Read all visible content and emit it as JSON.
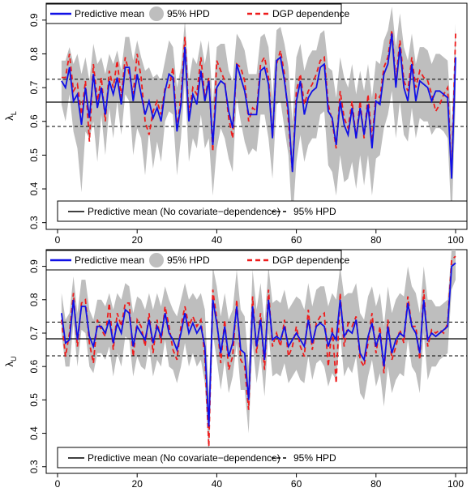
{
  "chart_data": [
    {
      "type": "line",
      "ylabel": "λ",
      "ylabel_sub": "L",
      "xlim": [
        0,
        100
      ],
      "ylim": [
        0.28,
        0.95
      ],
      "xticks": [
        0,
        20,
        40,
        60,
        80,
        100
      ],
      "yticks": [
        0.3,
        0.4,
        0.5,
        0.6,
        0.7,
        0.8,
        0.9
      ],
      "hlines": {
        "mean": 0.657,
        "hpd_lower": 0.585,
        "hpd_upper": 0.725
      },
      "legend_top": {
        "predictive_mean": "Predictive mean",
        "hpd": "95% HPD",
        "dgp": "DGP dependence"
      },
      "legend_bottom": {
        "mean_no_cov": "Predictive mean (No covariate−dependence)",
        "hpd": "95% HPD"
      },
      "x": [
        1,
        2,
        3,
        4,
        5,
        6,
        7,
        8,
        9,
        10,
        11,
        12,
        13,
        14,
        15,
        16,
        17,
        18,
        19,
        20,
        21,
        22,
        23,
        24,
        25,
        26,
        27,
        28,
        29,
        30,
        31,
        32,
        33,
        34,
        35,
        36,
        37,
        38,
        39,
        40,
        41,
        42,
        43,
        44,
        45,
        46,
        47,
        48,
        49,
        50,
        51,
        52,
        53,
        54,
        55,
        56,
        57,
        58,
        59,
        60,
        61,
        62,
        63,
        64,
        65,
        66,
        67,
        68,
        69,
        70,
        71,
        72,
        73,
        74,
        75,
        76,
        77,
        78,
        79,
        80,
        81,
        82,
        83,
        84,
        85,
        86,
        87,
        88,
        89,
        90,
        91,
        92,
        93,
        94,
        95,
        96,
        97,
        98,
        99,
        100
      ],
      "predictive_mean": [
        0.72,
        0.7,
        0.76,
        0.66,
        0.68,
        0.59,
        0.7,
        0.61,
        0.74,
        0.64,
        0.7,
        0.62,
        0.72,
        0.68,
        0.73,
        0.65,
        0.76,
        0.76,
        0.66,
        0.74,
        0.68,
        0.62,
        0.66,
        0.61,
        0.64,
        0.6,
        0.69,
        0.74,
        0.73,
        0.57,
        0.65,
        0.82,
        0.6,
        0.68,
        0.65,
        0.75,
        0.66,
        0.72,
        0.53,
        0.7,
        0.72,
        0.71,
        0.63,
        0.58,
        0.77,
        0.73,
        0.69,
        0.62,
        0.62,
        0.62,
        0.75,
        0.76,
        0.71,
        0.55,
        0.78,
        0.79,
        0.72,
        0.63,
        0.45,
        0.66,
        0.72,
        0.62,
        0.67,
        0.69,
        0.7,
        0.76,
        0.77,
        0.63,
        0.61,
        0.53,
        0.66,
        0.59,
        0.56,
        0.64,
        0.55,
        0.64,
        0.56,
        0.65,
        0.52,
        0.66,
        0.65,
        0.74,
        0.77,
        0.86,
        0.7,
        0.82,
        0.7,
        0.66,
        0.77,
        0.66,
        0.72,
        0.71,
        0.7,
        0.66,
        0.69,
        0.69,
        0.68,
        0.67,
        0.43,
        0.79
      ],
      "hpd_lower": [
        0.65,
        0.6,
        0.68,
        0.57,
        0.52,
        0.39,
        0.57,
        0.55,
        0.6,
        0.48,
        0.62,
        0.5,
        0.64,
        0.55,
        0.66,
        0.56,
        0.68,
        0.66,
        0.5,
        0.58,
        0.55,
        0.44,
        0.57,
        0.46,
        0.54,
        0.48,
        0.6,
        0.63,
        0.62,
        0.44,
        0.55,
        0.72,
        0.48,
        0.55,
        0.52,
        0.62,
        0.52,
        0.55,
        0.38,
        0.52,
        0.58,
        0.55,
        0.49,
        0.45,
        0.67,
        0.6,
        0.54,
        0.5,
        0.52,
        0.51,
        0.62,
        0.62,
        0.55,
        0.43,
        0.65,
        0.66,
        0.58,
        0.5,
        0.3,
        0.48,
        0.56,
        0.48,
        0.53,
        0.55,
        0.55,
        0.62,
        0.63,
        0.47,
        0.45,
        0.38,
        0.5,
        0.42,
        0.43,
        0.48,
        0.4,
        0.5,
        0.41,
        0.5,
        0.38,
        0.49,
        0.5,
        0.58,
        0.62,
        0.69,
        0.55,
        0.66,
        0.56,
        0.54,
        0.64,
        0.55,
        0.61,
        0.6,
        0.6,
        0.56,
        0.58,
        0.58,
        0.57,
        0.55,
        0.3,
        0.66
      ],
      "hpd_upper": [
        0.78,
        0.78,
        0.82,
        0.77,
        0.8,
        0.74,
        0.79,
        0.72,
        0.83,
        0.77,
        0.79,
        0.74,
        0.8,
        0.77,
        0.81,
        0.75,
        0.85,
        0.85,
        0.78,
        0.84,
        0.79,
        0.75,
        0.76,
        0.73,
        0.74,
        0.72,
        0.78,
        0.84,
        0.82,
        0.7,
        0.76,
        0.9,
        0.72,
        0.79,
        0.77,
        0.84,
        0.77,
        0.84,
        0.65,
        0.82,
        0.83,
        0.83,
        0.75,
        0.72,
        0.86,
        0.84,
        0.81,
        0.74,
        0.74,
        0.74,
        0.85,
        0.86,
        0.82,
        0.67,
        0.87,
        0.88,
        0.83,
        0.76,
        0.6,
        0.79,
        0.83,
        0.75,
        0.79,
        0.81,
        0.81,
        0.86,
        0.87,
        0.76,
        0.75,
        0.67,
        0.79,
        0.73,
        0.7,
        0.77,
        0.68,
        0.75,
        0.69,
        0.77,
        0.67,
        0.78,
        0.77,
        0.84,
        0.87,
        0.94,
        0.82,
        0.92,
        0.82,
        0.78,
        0.86,
        0.77,
        0.82,
        0.82,
        0.81,
        0.77,
        0.8,
        0.8,
        0.79,
        0.78,
        0.58,
        0.89
      ],
      "dgp_dependence": [
        0.73,
        0.73,
        0.8,
        0.69,
        0.71,
        0.62,
        0.72,
        0.54,
        0.77,
        0.66,
        0.73,
        0.6,
        0.75,
        0.7,
        0.78,
        0.67,
        0.79,
        0.74,
        0.68,
        0.8,
        0.73,
        0.6,
        0.56,
        0.63,
        0.66,
        0.62,
        0.7,
        0.7,
        0.76,
        0.58,
        0.67,
        0.85,
        0.62,
        0.7,
        0.68,
        0.79,
        0.67,
        0.73,
        0.51,
        0.78,
        0.75,
        0.72,
        0.61,
        0.55,
        0.77,
        0.76,
        0.72,
        0.6,
        0.64,
        0.63,
        0.77,
        0.79,
        0.73,
        0.55,
        0.77,
        0.81,
        0.74,
        0.6,
        0.45,
        0.69,
        0.74,
        0.65,
        0.69,
        0.71,
        0.74,
        0.78,
        0.79,
        0.65,
        0.6,
        0.52,
        0.69,
        0.61,
        0.58,
        0.66,
        0.55,
        0.66,
        0.55,
        0.68,
        0.54,
        0.68,
        0.67,
        0.76,
        0.79,
        0.87,
        0.72,
        0.84,
        0.72,
        0.69,
        0.79,
        0.7,
        0.75,
        0.73,
        0.72,
        0.68,
        0.63,
        0.65,
        0.68,
        0.7,
        0.44,
        0.86
      ]
    },
    {
      "type": "line",
      "ylabel": "λ",
      "ylabel_sub": "U",
      "xlim": [
        0,
        100
      ],
      "ylim": [
        0.28,
        0.95
      ],
      "xticks": [
        0,
        20,
        40,
        60,
        80,
        100
      ],
      "yticks": [
        0.3,
        0.4,
        0.5,
        0.6,
        0.7,
        0.8,
        0.9
      ],
      "hlines": {
        "mean": 0.683,
        "hpd_lower": 0.632,
        "hpd_upper": 0.733
      },
      "legend_top": {
        "predictive_mean": "Predictive mean",
        "hpd": "95% HPD",
        "dgp": "DGP dependence"
      },
      "legend_bottom": {
        "mean_no_cov": "Predictive mean (No covariate−dependence)",
        "hpd": "95% HPD"
      },
      "x": [
        1,
        2,
        3,
        4,
        5,
        6,
        7,
        8,
        9,
        10,
        11,
        12,
        13,
        14,
        15,
        16,
        17,
        18,
        19,
        20,
        21,
        22,
        23,
        24,
        25,
        26,
        27,
        28,
        29,
        30,
        31,
        32,
        33,
        34,
        35,
        36,
        37,
        38,
        39,
        40,
        41,
        42,
        43,
        44,
        45,
        46,
        47,
        48,
        49,
        50,
        51,
        52,
        53,
        54,
        55,
        56,
        57,
        58,
        59,
        60,
        61,
        62,
        63,
        64,
        65,
        66,
        67,
        68,
        69,
        70,
        71,
        72,
        73,
        74,
        75,
        76,
        77,
        78,
        79,
        80,
        81,
        82,
        83,
        84,
        85,
        86,
        87,
        88,
        89,
        90,
        91,
        92,
        93,
        94,
        95,
        96,
        97,
        98,
        99,
        100
      ],
      "predictive_mean": [
        0.76,
        0.67,
        0.68,
        0.8,
        0.68,
        0.78,
        0.78,
        0.69,
        0.66,
        0.72,
        0.72,
        0.7,
        0.74,
        0.67,
        0.73,
        0.7,
        0.77,
        0.76,
        0.66,
        0.72,
        0.7,
        0.68,
        0.74,
        0.67,
        0.72,
        0.69,
        0.76,
        0.7,
        0.68,
        0.65,
        0.7,
        0.76,
        0.7,
        0.73,
        0.7,
        0.72,
        0.66,
        0.42,
        0.8,
        0.73,
        0.64,
        0.72,
        0.63,
        0.67,
        0.78,
        0.65,
        0.64,
        0.5,
        0.78,
        0.66,
        0.74,
        0.62,
        0.8,
        0.68,
        0.69,
        0.68,
        0.72,
        0.66,
        0.68,
        0.7,
        0.68,
        0.66,
        0.74,
        0.67,
        0.72,
        0.73,
        0.72,
        0.66,
        0.7,
        0.68,
        0.8,
        0.69,
        0.71,
        0.7,
        0.74,
        0.64,
        0.62,
        0.69,
        0.73,
        0.66,
        0.7,
        0.6,
        0.72,
        0.64,
        0.68,
        0.7,
        0.69,
        0.79,
        0.72,
        0.7,
        0.64,
        0.8,
        0.68,
        0.7,
        0.69,
        0.7,
        0.71,
        0.72,
        0.9,
        0.91
      ],
      "hpd_lower": [
        0.7,
        0.6,
        0.6,
        0.73,
        0.6,
        0.71,
        0.7,
        0.6,
        0.58,
        0.64,
        0.64,
        0.62,
        0.66,
        0.57,
        0.64,
        0.6,
        0.69,
        0.68,
        0.57,
        0.63,
        0.6,
        0.59,
        0.66,
        0.57,
        0.62,
        0.6,
        0.68,
        0.6,
        0.59,
        0.55,
        0.6,
        0.67,
        0.6,
        0.64,
        0.6,
        0.62,
        0.55,
        0.33,
        0.7,
        0.62,
        0.53,
        0.62,
        0.52,
        0.57,
        0.67,
        0.53,
        0.53,
        0.4,
        0.67,
        0.55,
        0.63,
        0.51,
        0.7,
        0.57,
        0.58,
        0.57,
        0.61,
        0.55,
        0.57,
        0.59,
        0.56,
        0.55,
        0.63,
        0.56,
        0.61,
        0.62,
        0.6,
        0.54,
        0.58,
        0.56,
        0.7,
        0.57,
        0.6,
        0.58,
        0.63,
        0.52,
        0.5,
        0.57,
        0.62,
        0.54,
        0.58,
        0.48,
        0.6,
        0.52,
        0.56,
        0.58,
        0.57,
        0.68,
        0.6,
        0.58,
        0.52,
        0.7,
        0.56,
        0.6,
        0.6,
        0.62,
        0.63,
        0.64,
        0.83,
        0.86
      ],
      "hpd_upper": [
        0.82,
        0.74,
        0.76,
        0.87,
        0.76,
        0.86,
        0.86,
        0.77,
        0.74,
        0.8,
        0.8,
        0.78,
        0.82,
        0.77,
        0.82,
        0.8,
        0.85,
        0.84,
        0.76,
        0.81,
        0.8,
        0.77,
        0.82,
        0.77,
        0.82,
        0.78,
        0.84,
        0.8,
        0.77,
        0.75,
        0.8,
        0.85,
        0.8,
        0.82,
        0.8,
        0.82,
        0.77,
        0.52,
        0.9,
        0.84,
        0.75,
        0.82,
        0.74,
        0.77,
        0.89,
        0.77,
        0.75,
        0.6,
        0.89,
        0.77,
        0.85,
        0.73,
        0.9,
        0.79,
        0.8,
        0.79,
        0.83,
        0.77,
        0.79,
        0.81,
        0.8,
        0.77,
        0.85,
        0.78,
        0.83,
        0.84,
        0.84,
        0.78,
        0.82,
        0.8,
        0.9,
        0.81,
        0.82,
        0.82,
        0.85,
        0.76,
        0.74,
        0.81,
        0.84,
        0.78,
        0.82,
        0.72,
        0.84,
        0.76,
        0.8,
        0.82,
        0.81,
        0.9,
        0.84,
        0.82,
        0.76,
        0.9,
        0.8,
        0.8,
        0.78,
        0.78,
        0.79,
        0.8,
        0.95,
        0.95
      ],
      "dgp_dependence": [
        0.74,
        0.63,
        0.7,
        0.82,
        0.66,
        0.79,
        0.8,
        0.67,
        0.61,
        0.74,
        0.71,
        0.69,
        0.79,
        0.65,
        0.76,
        0.72,
        0.79,
        0.79,
        0.63,
        0.74,
        0.72,
        0.66,
        0.76,
        0.64,
        0.74,
        0.67,
        0.78,
        0.72,
        0.65,
        0.62,
        0.72,
        0.78,
        0.72,
        0.75,
        0.72,
        0.74,
        0.63,
        0.36,
        0.83,
        0.74,
        0.61,
        0.74,
        0.59,
        0.63,
        0.8,
        0.62,
        0.6,
        0.47,
        0.81,
        0.64,
        0.76,
        0.59,
        0.83,
        0.66,
        0.7,
        0.66,
        0.74,
        0.63,
        0.66,
        0.72,
        0.66,
        0.63,
        0.77,
        0.65,
        0.73,
        0.75,
        0.76,
        0.6,
        0.72,
        0.55,
        0.82,
        0.66,
        0.73,
        0.72,
        0.75,
        0.62,
        0.6,
        0.67,
        0.76,
        0.64,
        0.72,
        0.58,
        0.74,
        0.62,
        0.66,
        0.71,
        0.67,
        0.81,
        0.72,
        0.72,
        0.62,
        0.83,
        0.66,
        0.71,
        0.7,
        0.71,
        0.7,
        0.73,
        0.92,
        0.93
      ]
    }
  ]
}
